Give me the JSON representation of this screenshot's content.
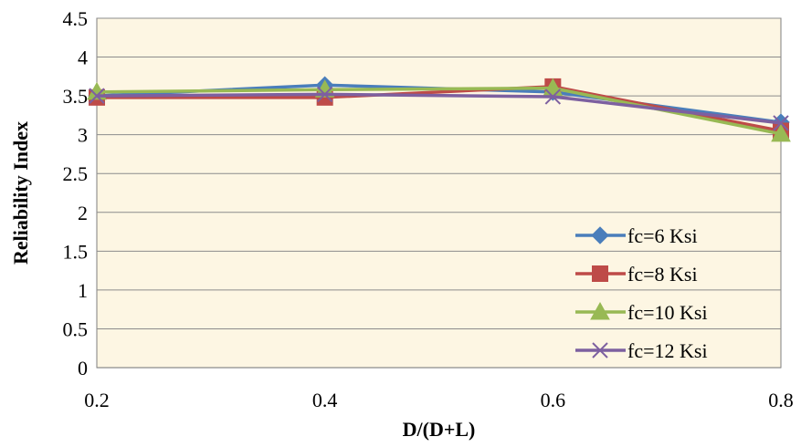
{
  "chart_data": {
    "type": "line",
    "title": "",
    "xlabel": "D/(D+L)",
    "ylabel": "Reliability Index",
    "x": [
      0.2,
      0.4,
      0.6,
      0.8
    ],
    "x_tick_labels": [
      "0.2",
      "0.4",
      "0.6",
      "0.8"
    ],
    "xlim": [
      0.2,
      0.8
    ],
    "ylim": [
      0,
      4.5
    ],
    "y_tick_labels": [
      "0",
      "0.5",
      "1",
      "1.5",
      "2",
      "2.5",
      "3",
      "3.5",
      "4",
      "4.5"
    ],
    "y_ticks": [
      0,
      0.5,
      1,
      1.5,
      2,
      2.5,
      3,
      3.5,
      4,
      4.5
    ],
    "grid": "horizontal",
    "legend_position": "bottom-right",
    "plot_background": "#fdf6e3",
    "series": [
      {
        "name": "fc=6 Ksi",
        "values": [
          3.5,
          3.64,
          3.55,
          3.16
        ],
        "color": "#4a7ebb",
        "marker": "diamond"
      },
      {
        "name": "fc=8 Ksi",
        "values": [
          3.48,
          3.48,
          3.62,
          3.05
        ],
        "color": "#be4b48",
        "marker": "square"
      },
      {
        "name": "fc=10 Ksi",
        "values": [
          3.55,
          3.58,
          3.6,
          3.01
        ],
        "color": "#98b954",
        "marker": "triangle"
      },
      {
        "name": "fc=12 Ksi",
        "values": [
          3.5,
          3.52,
          3.49,
          3.15
        ],
        "color": "#7d60a0",
        "marker": "x"
      }
    ]
  }
}
